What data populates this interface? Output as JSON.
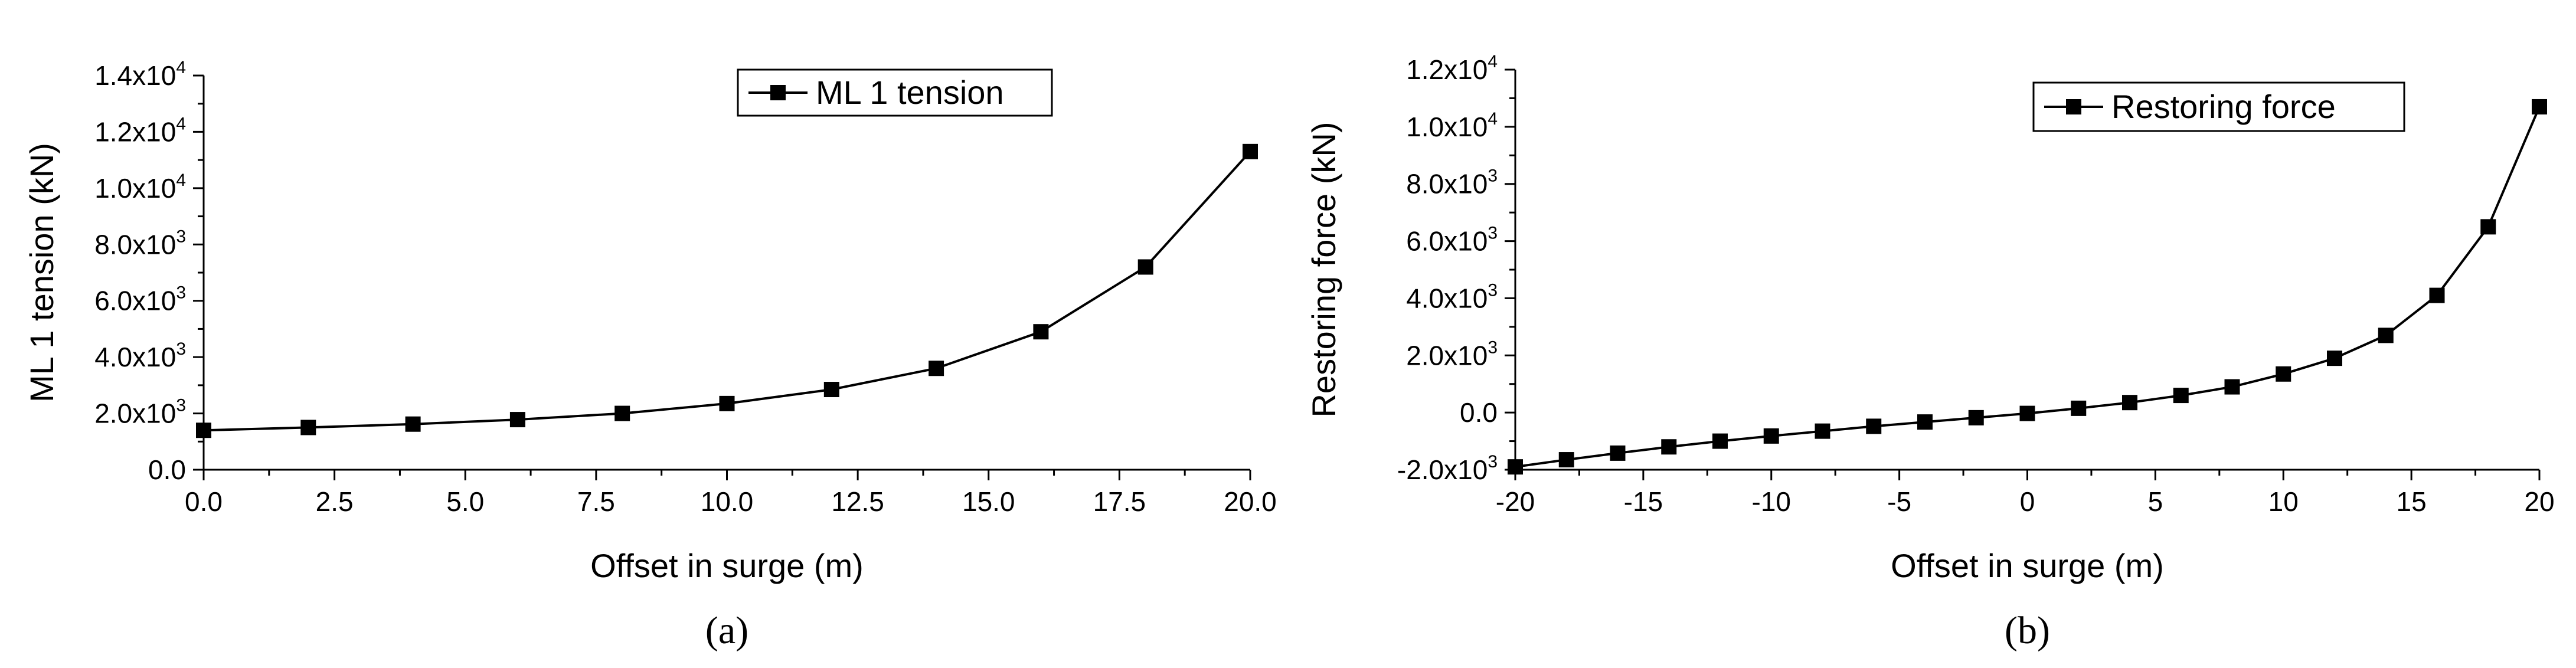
{
  "chart_data": [
    {
      "type": "line",
      "panel_label": "(a)",
      "title": "",
      "xlabel": "Offset in surge (m)",
      "ylabel": "ML 1 tension (kN)",
      "xlim": [
        0,
        20
      ],
      "ylim": [
        0,
        14000
      ],
      "x_ticks": [
        0,
        2.5,
        5,
        7.5,
        10,
        12.5,
        15,
        17.5,
        20
      ],
      "x_tick_labels": [
        "0.0",
        "2.5",
        "5.0",
        "7.5",
        "10.0",
        "12.5",
        "15.0",
        "17.5",
        "20.0"
      ],
      "y_ticks": [
        0,
        2000,
        4000,
        6000,
        8000,
        10000,
        12000,
        14000
      ],
      "y_tick_labels": [
        {
          "mantissa": "0.0",
          "exponent": ""
        },
        {
          "mantissa": "2.0x10",
          "exponent": "3"
        },
        {
          "mantissa": "4.0x10",
          "exponent": "3"
        },
        {
          "mantissa": "6.0x10",
          "exponent": "3"
        },
        {
          "mantissa": "8.0x10",
          "exponent": "3"
        },
        {
          "mantissa": "1.0x10",
          "exponent": "4"
        },
        {
          "mantissa": "1.2x10",
          "exponent": "4"
        },
        {
          "mantissa": "1.4x10",
          "exponent": "4"
        }
      ],
      "grid": false,
      "legend_position": "top-right",
      "series": [
        {
          "name": "ML 1 tension",
          "marker": "square",
          "color": "#000000",
          "x": [
            0,
            2,
            4,
            6,
            8,
            10,
            12,
            14,
            16,
            18,
            20
          ],
          "y": [
            1400,
            1500,
            1620,
            1780,
            2000,
            2350,
            2850,
            3600,
            4900,
            7200,
            11300
          ]
        }
      ]
    },
    {
      "type": "line",
      "panel_label": "(b)",
      "title": "",
      "xlabel": "Offset in surge (m)",
      "ylabel": "Restoring force (kN)",
      "xlim": [
        -20,
        20
      ],
      "ylim": [
        -2000,
        12000
      ],
      "x_ticks": [
        -20,
        -15,
        -10,
        -5,
        0,
        5,
        10,
        15,
        20
      ],
      "x_tick_labels": [
        "-20",
        "-15",
        "-10",
        "-5",
        "0",
        "5",
        "10",
        "15",
        "20"
      ],
      "y_ticks": [
        -2000,
        0,
        2000,
        4000,
        6000,
        8000,
        10000,
        12000
      ],
      "y_tick_labels": [
        {
          "mantissa": "-2.0x10",
          "exponent": "3"
        },
        {
          "mantissa": "0.0",
          "exponent": ""
        },
        {
          "mantissa": "2.0x10",
          "exponent": "3"
        },
        {
          "mantissa": "4.0x10",
          "exponent": "3"
        },
        {
          "mantissa": "6.0x10",
          "exponent": "3"
        },
        {
          "mantissa": "8.0x10",
          "exponent": "3"
        },
        {
          "mantissa": "1.0x10",
          "exponent": "4"
        },
        {
          "mantissa": "1.2x10",
          "exponent": "4"
        }
      ],
      "grid": false,
      "legend_position": "top-right",
      "series": [
        {
          "name": "Restoring force",
          "marker": "square",
          "color": "#000000",
          "x": [
            -20,
            -18,
            -16,
            -14,
            -12,
            -10,
            -8,
            -6,
            -4,
            -2,
            0,
            2,
            4,
            6,
            8,
            10,
            12,
            14,
            16,
            18,
            20
          ],
          "y": [
            -1900,
            -1650,
            -1420,
            -1200,
            -1000,
            -820,
            -650,
            -480,
            -330,
            -180,
            -30,
            150,
            350,
            600,
            900,
            1350,
            1900,
            2700,
            4100,
            6500,
            10700
          ]
        }
      ]
    }
  ]
}
